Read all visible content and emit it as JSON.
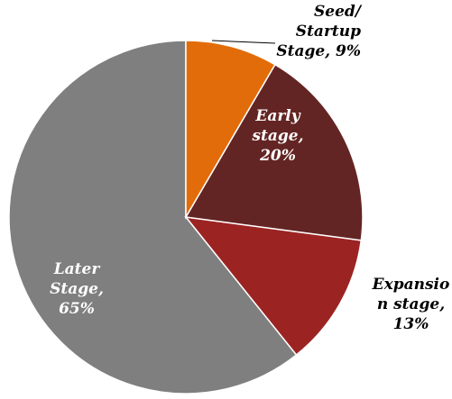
{
  "chart_data": {
    "type": "pie",
    "values": [
      9,
      20,
      13,
      65
    ],
    "value_labels": [
      "Seed/ Startup Stage, 9%",
      "Early stage, 20%",
      "Expansion stage, 13%",
      "Later Stage, 65%"
    ],
    "colors": [
      "#e36c0a",
      "#632523",
      "#9b2423",
      "#7f7f7f"
    ]
  }
}
